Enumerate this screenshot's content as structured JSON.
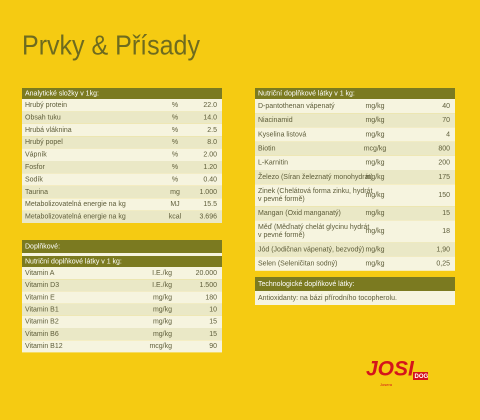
{
  "title": "Prvky & Přísady",
  "left_table": {
    "header": "Analytické složky v 1kg:",
    "rows": [
      [
        "Hrubý protein",
        "%",
        "22.0"
      ],
      [
        "Obsah tuku",
        "%",
        "14.0"
      ],
      [
        "Hrubá vláknina",
        "%",
        "2.5"
      ],
      [
        "Hrubý popel",
        "%",
        "8.0"
      ],
      [
        "Vápník",
        "%",
        "2.00"
      ],
      [
        "Fosfor",
        "%",
        "1.20"
      ],
      [
        "Sodík",
        "%",
        "0.40"
      ],
      [
        "Taurina",
        "mg",
        "1.000"
      ],
      [
        "Metabolizovatelná energie na kg",
        "MJ",
        "15.5"
      ],
      [
        "Metabolizovatelná energie na kg",
        "kcal",
        "3.696"
      ]
    ]
  },
  "supplements": {
    "header": "Doplňkové:",
    "subheader": "Nutriční doplňkové látky v 1 kg:",
    "rows": [
      [
        "Vitamin A",
        "I.E./kg",
        "20.000"
      ],
      [
        "Vitamin D3",
        "I.E./kg",
        "1.500"
      ],
      [
        "Vitamin E",
        "mg/kg",
        "180"
      ],
      [
        "Vitamin B1",
        "mg/kg",
        "10"
      ],
      [
        "Vitamin B2",
        "mg/kg",
        "15"
      ],
      [
        "Vitamin B6",
        "mg/kg",
        "15"
      ],
      [
        "Vitamin B12",
        "mcg/kg",
        "90"
      ]
    ]
  },
  "right_table": {
    "header": "Nutriční doplňkové látky v 1 kg:",
    "rows": [
      [
        [
          "D-pantothenan vápenatý"
        ],
        "mg/kg",
        "40"
      ],
      [
        [
          "Niacinamid"
        ],
        "mg/kg",
        "70"
      ],
      [
        [
          "Kyselina listová"
        ],
        "mg/kg",
        "4"
      ],
      [
        [
          "Biotin"
        ],
        "mcg/kg",
        "800"
      ],
      [
        [
          "L-Karnitin"
        ],
        "mg/kg",
        "200"
      ],
      [
        [
          "Železo (Síran železnatý monohydrát)"
        ],
        "mg/kg",
        "175"
      ],
      [
        [
          "Zinek (Chelátová forma zinku, hydrát",
          "v pevné formě)"
        ],
        "mg/kg",
        "150"
      ],
      [
        [
          "Mangan (Oxid manganatý)"
        ],
        "mg/kg",
        "15"
      ],
      [
        [
          "Měď (Měďnatý chelát glycinu hydrát",
          "v pevné formě)"
        ],
        "mg/kg",
        "18"
      ],
      [
        [
          "Jód (Jodičnan vápenatý, bezvodý)"
        ],
        "mg/kg",
        "1,90"
      ],
      [
        [
          "Selen (Seleničitan sodný)"
        ],
        "mg/kg",
        "0,25"
      ]
    ]
  },
  "technology": {
    "header": "Technologické doplňkové látky:",
    "text": "Antioxidanty: na bázi přírodního tocopherolu."
  },
  "logo": {
    "brand": "JOSI",
    "badge": "DOG",
    "sub": "Josera"
  }
}
